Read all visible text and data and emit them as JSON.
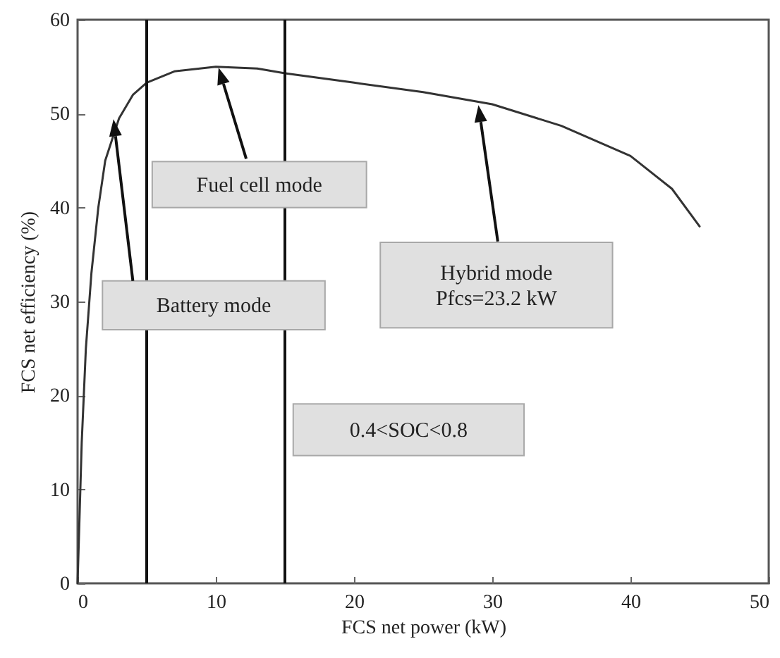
{
  "chart_data": {
    "type": "line",
    "xlabel": "FCS net power (kW)",
    "ylabel": "FCS net efficiency (%)",
    "x": [
      0,
      0.3,
      0.6,
      1,
      1.5,
      2,
      3,
      4,
      5,
      7,
      10,
      13,
      15,
      20,
      25,
      30,
      35,
      40,
      43,
      45
    ],
    "series": [
      {
        "color": "#333333",
        "values": [
          0,
          15,
          25,
          33,
          40,
          45,
          49.5,
          52,
          53.3,
          54.5,
          55,
          54.8,
          54.3,
          53.3,
          52.3,
          51,
          48.7,
          45.5,
          42,
          38
        ]
      }
    ],
    "xlim": [
      0,
      50
    ],
    "xticks": [
      0,
      10,
      20,
      30,
      40,
      50
    ],
    "ylim": [
      0,
      60
    ],
    "yticks": [
      0,
      10,
      20,
      30,
      40,
      50,
      60
    ],
    "grid": false,
    "marker": "none",
    "line_style": "solid",
    "ref_lines": [
      {
        "axis": "x",
        "value": 5,
        "color": "#111111"
      },
      {
        "axis": "x",
        "value": 15,
        "color": "#111111"
      }
    ],
    "annotations": [
      "Battery mode",
      "Fuel cell mode",
      "Hybrid mode\nPfcs=23.2 kW",
      "0.4<SOC<0.8"
    ]
  }
}
